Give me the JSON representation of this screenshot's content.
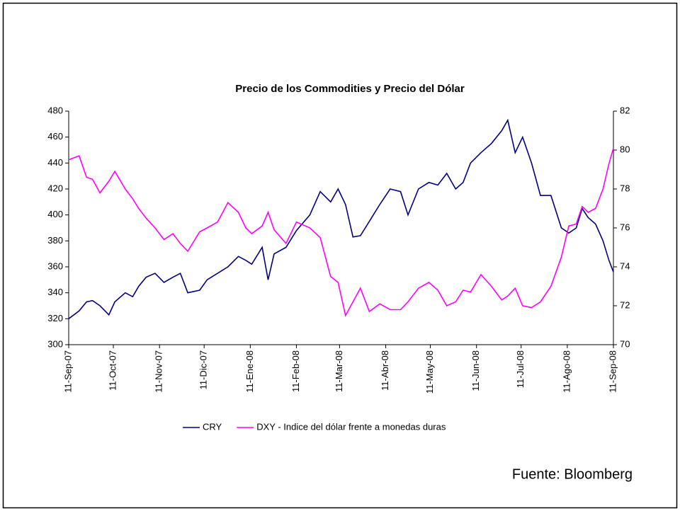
{
  "chart_data": {
    "type": "line",
    "title": "Precio de los Commodities y Precio del Dólar",
    "source": "Fuente:  Bloomberg",
    "legend": "bottom",
    "x": [
      "2007-09-11",
      "2007-09-18",
      "2007-09-23",
      "2007-09-27",
      "2007-10-02",
      "2007-10-08",
      "2007-10-12",
      "2007-10-19",
      "2007-10-24",
      "2007-10-28",
      "2007-11-02",
      "2007-11-08",
      "2007-11-14",
      "2007-11-20",
      "2007-11-25",
      "2007-11-30",
      "2007-12-08",
      "2007-12-13",
      "2007-12-20",
      "2007-12-27",
      "2008-01-03",
      "2008-01-08",
      "2008-01-12",
      "2008-01-19",
      "2008-01-23",
      "2008-01-27",
      "2008-02-04",
      "2008-02-11",
      "2008-02-20",
      "2008-02-27",
      "2008-03-05",
      "2008-03-10",
      "2008-03-15",
      "2008-03-20",
      "2008-03-25",
      "2008-03-31",
      "2008-04-07",
      "2008-04-14",
      "2008-04-21",
      "2008-04-26",
      "2008-05-03",
      "2008-05-10",
      "2008-05-16",
      "2008-05-22",
      "2008-05-28",
      "2008-06-02",
      "2008-06-07",
      "2008-06-14",
      "2008-06-21",
      "2008-06-28",
      "2008-07-02",
      "2008-07-07",
      "2008-07-12",
      "2008-07-18",
      "2008-07-24",
      "2008-07-31",
      "2008-08-07",
      "2008-08-12",
      "2008-08-17",
      "2008-08-21",
      "2008-08-25",
      "2008-08-30",
      "2008-09-04",
      "2008-09-08",
      "2008-09-11"
    ],
    "series": [
      {
        "name": "CRY",
        "color": "#000080",
        "axis": "y",
        "values": [
          320,
          326,
          333,
          334,
          330,
          323,
          333,
          340,
          337,
          345,
          352,
          355,
          348,
          352,
          355,
          340,
          342,
          350,
          355,
          360,
          368,
          365,
          362,
          375,
          350,
          370,
          375,
          388,
          400,
          418,
          410,
          420,
          408,
          383,
          384,
          395,
          408,
          420,
          418,
          400,
          420,
          425,
          423,
          432,
          420,
          425,
          440,
          448,
          455,
          465,
          473,
          448,
          460,
          440,
          415,
          415,
          390,
          386,
          390,
          405,
          398,
          393,
          380,
          365,
          356
        ]
      },
      {
        "name": "DXY - Indice del dólar frente a monedas duras",
        "color": "#ff00ff",
        "axis": "y2",
        "values": [
          79.5,
          79.7,
          78.6,
          78.5,
          77.8,
          78.4,
          78.9,
          78.0,
          77.5,
          77.0,
          76.5,
          76.0,
          75.4,
          75.7,
          75.2,
          74.8,
          75.8,
          76.0,
          76.3,
          77.3,
          76.8,
          76.0,
          75.7,
          76.1,
          76.8,
          75.9,
          75.2,
          76.3,
          76.0,
          75.5,
          73.5,
          73.2,
          71.5,
          72.2,
          72.9,
          71.7,
          72.1,
          71.8,
          71.8,
          72.2,
          72.9,
          73.2,
          72.8,
          72.0,
          72.2,
          72.8,
          72.7,
          73.6,
          73.0,
          72.3,
          72.5,
          72.9,
          72.0,
          71.9,
          72.2,
          73.0,
          74.5,
          76.1,
          76.2,
          77.1,
          76.8,
          77.0,
          78.0,
          79.3,
          80.1
        ]
      }
    ],
    "xlim": [
      "2007-09-11",
      "2008-09-11"
    ],
    "xticks": [
      {
        "value": "2007-09-11",
        "label": "11-Sep-07"
      },
      {
        "value": "2007-10-11",
        "label": "11-Oct-07"
      },
      {
        "value": "2007-11-11",
        "label": "11-Nov-07"
      },
      {
        "value": "2007-12-11",
        "label": "11-Dic-07"
      },
      {
        "value": "2008-01-11",
        "label": "11-Ene-08"
      },
      {
        "value": "2008-02-11",
        "label": "11-Feb-08"
      },
      {
        "value": "2008-03-11",
        "label": "11-Mar-08"
      },
      {
        "value": "2008-04-11",
        "label": "11-Abr-08"
      },
      {
        "value": "2008-05-11",
        "label": "11-May-08"
      },
      {
        "value": "2008-06-11",
        "label": "11-Jun-08"
      },
      {
        "value": "2008-07-11",
        "label": "11-Jul-08"
      },
      {
        "value": "2008-08-11",
        "label": "11-Ago-08"
      },
      {
        "value": "2008-09-11",
        "label": "11-Sep-08"
      }
    ],
    "ylim": [
      300,
      480
    ],
    "yticks": [
      300,
      320,
      340,
      360,
      380,
      400,
      420,
      440,
      460,
      480
    ],
    "y2lim": [
      70,
      82
    ],
    "y2ticks": [
      70,
      72,
      74,
      76,
      78,
      80,
      82
    ],
    "grid": false
  }
}
